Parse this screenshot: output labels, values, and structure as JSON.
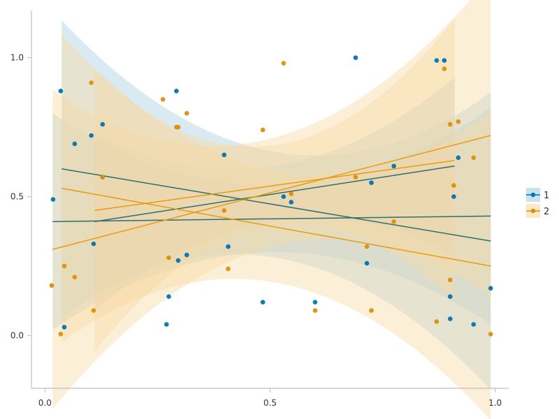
{
  "chart_data": {
    "type": "scatter",
    "title": "",
    "xlabel": "",
    "ylabel": "",
    "xlim": [
      -0.03,
      1.03
    ],
    "ylim": [
      -0.19,
      1.17
    ],
    "xticks": [
      0.0,
      0.5,
      1.0
    ],
    "yticks": [
      0.0,
      0.5,
      1.0
    ],
    "xtick_labels": [
      "0.0",
      "0.5",
      "1.0"
    ],
    "ytick_labels": [
      "0.0",
      "0.5",
      "1.0"
    ],
    "grid": false,
    "legend": {
      "placement": "right",
      "entries": [
        "1",
        "2"
      ]
    },
    "colors": {
      "1": "#0173b2",
      "2": "#de8f05",
      "band_1": "#a6cde3",
      "band_2": "#f7d9a3",
      "line_1": "#2e6e6e",
      "line_2": "#e89b10"
    },
    "series": [
      {
        "name": "1",
        "points": [
          [
            0.018,
            0.49
          ],
          [
            0.035,
            0.88
          ],
          [
            0.043,
            0.03
          ],
          [
            0.066,
            0.69
          ],
          [
            0.103,
            0.72
          ],
          [
            0.108,
            0.33
          ],
          [
            0.128,
            0.76
          ],
          [
            0.128,
            0.57
          ],
          [
            0.27,
            0.04
          ],
          [
            0.275,
            0.14
          ],
          [
            0.292,
            0.88
          ],
          [
            0.296,
            0.27
          ],
          [
            0.315,
            0.29
          ],
          [
            0.398,
            0.65
          ],
          [
            0.407,
            0.32
          ],
          [
            0.484,
            0.12
          ],
          [
            0.53,
            0.5
          ],
          [
            0.547,
            0.48
          ],
          [
            0.6,
            0.12
          ],
          [
            0.69,
            1.0
          ],
          [
            0.715,
            0.26
          ],
          [
            0.725,
            0.55
          ],
          [
            0.775,
            0.61
          ],
          [
            0.87,
            0.99
          ],
          [
            0.887,
            0.99
          ],
          [
            0.9,
            0.14
          ],
          [
            0.9,
            0.06
          ],
          [
            0.908,
            0.5
          ],
          [
            0.918,
            0.64
          ],
          [
            0.952,
            0.04
          ],
          [
            0.99,
            0.17
          ]
        ],
        "lines": [
          {
            "x": [
              0.017,
              0.99
            ],
            "y": [
              0.41,
              0.43
            ]
          },
          {
            "x": [
              0.037,
              0.99
            ],
            "y": [
              0.6,
              0.34
            ]
          },
          {
            "x": [
              0.11,
              0.91
            ],
            "y": [
              0.41,
              0.61
            ]
          }
        ],
        "bands": [
          {
            "x": [
              0.017,
              0.99
            ],
            "lower_end": 0.04,
            "lower_mid": 0.29,
            "upper_end": 0.82,
            "upper_mid": 0.53
          },
          {
            "x": [
              0.037,
              0.99
            ],
            "lower_end": 0.02,
            "lower_mid": 0.23,
            "upper_end": 1.09,
            "upper_mid": 0.61
          },
          {
            "x": [
              0.11,
              0.91
            ],
            "lower_end": 0.17,
            "lower_mid": 0.32,
            "upper_end": 0.81,
            "upper_mid": 0.52
          }
        ]
      },
      {
        "name": "2",
        "points": [
          [
            0.015,
            0.18
          ],
          [
            0.035,
            0.005
          ],
          [
            0.043,
            0.25
          ],
          [
            0.066,
            0.21
          ],
          [
            0.103,
            0.91
          ],
          [
            0.108,
            0.09
          ],
          [
            0.128,
            0.57
          ],
          [
            0.262,
            0.85
          ],
          [
            0.275,
            0.28
          ],
          [
            0.292,
            0.75
          ],
          [
            0.296,
            0.75
          ],
          [
            0.315,
            0.8
          ],
          [
            0.398,
            0.45
          ],
          [
            0.407,
            0.24
          ],
          [
            0.484,
            0.74
          ],
          [
            0.53,
            0.98
          ],
          [
            0.547,
            0.51
          ],
          [
            0.6,
            0.09
          ],
          [
            0.69,
            0.57
          ],
          [
            0.715,
            0.32
          ],
          [
            0.725,
            0.09
          ],
          [
            0.775,
            0.41
          ],
          [
            0.87,
            0.05
          ],
          [
            0.887,
            0.96
          ],
          [
            0.9,
            0.76
          ],
          [
            0.9,
            0.2
          ],
          [
            0.908,
            0.54
          ],
          [
            0.918,
            0.77
          ],
          [
            0.952,
            0.64
          ],
          [
            0.99,
            0.005
          ]
        ],
        "lines": [
          {
            "x": [
              0.017,
              0.99
            ],
            "y": [
              0.31,
              0.72
            ]
          },
          {
            "x": [
              0.037,
              0.99
            ],
            "y": [
              0.53,
              0.25
            ]
          },
          {
            "x": [
              0.11,
              0.91
            ],
            "y": [
              0.45,
              0.63
            ]
          }
        ],
        "bands": [
          {
            "x": [
              0.017,
              0.99
            ],
            "lower_end": -0.04,
            "lower_mid": 0.16,
            "upper_end": 1.11,
            "upper_mid": 0.55
          },
          {
            "x": [
              0.037,
              0.99
            ],
            "lower_end": -0.12,
            "lower_mid": 0.23,
            "upper_end": 0.99,
            "upper_mid": 0.63
          },
          {
            "x": [
              0.11,
              0.91
            ],
            "lower_end": 0.02,
            "lower_mid": 0.28,
            "upper_end": 1.04,
            "upper_mid": 0.57
          }
        ]
      }
    ]
  }
}
